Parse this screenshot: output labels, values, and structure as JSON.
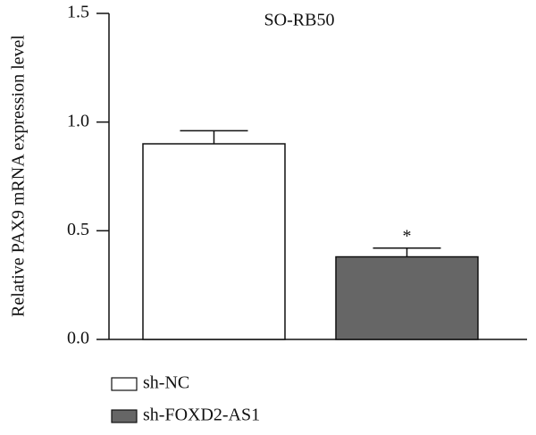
{
  "chart_data": {
    "type": "bar",
    "title": "SO-RB50",
    "y_label": "Relative PAX9 mRNA expression level",
    "ylim": [
      0,
      1.5
    ],
    "yticks": [
      {
        "value": 0,
        "label": "0.0"
      },
      0.5,
      {
        "value": 1,
        "label": "1.0"
      },
      1.5
    ],
    "series": [
      {
        "name": "sh-NC",
        "color": "#ffffff",
        "values": [
          0.9
        ],
        "errors": [
          0.06
        ]
      },
      {
        "name": "sh-FOXD2-AS1",
        "color": "#666666",
        "values": [
          0.38
        ],
        "errors": [
          0.04
        ],
        "significance": "*"
      }
    ]
  }
}
